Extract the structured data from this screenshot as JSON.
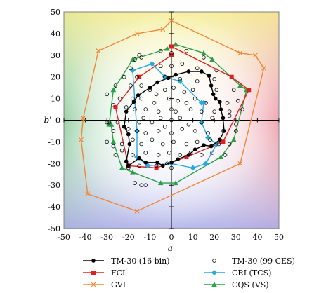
{
  "chart_data": {
    "type": "scatter",
    "title": "",
    "xlabel": "a'",
    "ylabel": "b'",
    "xlim": [
      -50,
      50
    ],
    "ylim": [
      -50,
      50
    ],
    "xticks": [
      -50,
      -40,
      -30,
      -20,
      -10,
      0,
      10,
      20,
      30,
      40,
      50
    ],
    "yticks": [
      -50,
      -40,
      -30,
      -20,
      -10,
      0,
      10,
      20,
      30,
      40,
      50
    ],
    "background": "hue-gradient",
    "grid": false,
    "legend_position": "bottom",
    "series": [
      {
        "name": "TM-30 (16 bin)",
        "kind": "polygon",
        "marker": "circle-filled",
        "color": "#000000",
        "points": [
          [
            -1.5,
            19.5
          ],
          [
            2,
            21
          ],
          [
            8,
            22.5
          ],
          [
            14,
            22.5
          ],
          [
            17.5,
            20.5
          ],
          [
            18.5,
            16
          ],
          [
            19.5,
            12
          ],
          [
            20.5,
            10
          ],
          [
            22.5,
            8.5
          ],
          [
            23,
            5
          ],
          [
            24,
            1
          ],
          [
            24.5,
            -5
          ],
          [
            22.5,
            -9
          ],
          [
            18.5,
            -12
          ],
          [
            15,
            -11.5
          ],
          [
            11,
            -13.5
          ],
          [
            8,
            -16
          ],
          [
            3,
            -18
          ],
          [
            0,
            -19.5
          ],
          [
            -4,
            -21
          ],
          [
            -6.5,
            -19.5
          ],
          [
            -12,
            -19.5
          ],
          [
            -15,
            -17.5
          ],
          [
            -20,
            -21
          ],
          [
            -21,
            -19
          ],
          [
            -19.5,
            -11
          ],
          [
            -20,
            -6.5
          ],
          [
            -22,
            -3
          ],
          [
            -21,
            4
          ],
          [
            -17.5,
            8.5
          ],
          [
            -15.5,
            11.5
          ],
          [
            -10,
            15
          ],
          [
            -6.5,
            17.5
          ],
          [
            -1.5,
            19.5
          ]
        ]
      },
      {
        "name": "TM-30 (99 CES)",
        "kind": "scatter",
        "marker": "circle-open",
        "color": "#000000",
        "points": [
          [
            -17,
            28
          ],
          [
            -15,
            30
          ],
          [
            -14,
            29
          ],
          [
            -5,
            32
          ],
          [
            0,
            31
          ],
          [
            7,
            32
          ],
          [
            15,
            29
          ],
          [
            -19,
            24
          ],
          [
            -5,
            25
          ],
          [
            0,
            25
          ],
          [
            5,
            26
          ],
          [
            12,
            24
          ],
          [
            21,
            23
          ],
          [
            -22,
            20
          ],
          [
            -16,
            20
          ],
          [
            -3,
            20
          ],
          [
            4,
            19
          ],
          [
            12,
            18
          ],
          [
            20,
            19
          ],
          [
            -26,
            16
          ],
          [
            -19,
            16
          ],
          [
            -14,
            16
          ],
          [
            -10,
            14
          ],
          [
            -7,
            12
          ],
          [
            -3,
            14
          ],
          [
            1,
            15
          ],
          [
            6,
            13
          ],
          [
            10,
            14
          ],
          [
            21,
            14
          ],
          [
            29,
            14
          ],
          [
            -30,
            12
          ],
          [
            -24,
            10
          ],
          [
            -18,
            10
          ],
          [
            -14,
            10
          ],
          [
            -8,
            8
          ],
          [
            -1,
            10
          ],
          [
            3,
            9
          ],
          [
            7,
            8
          ],
          [
            11,
            10
          ],
          [
            16,
            8
          ],
          [
            26,
            8
          ],
          [
            31,
            9
          ],
          [
            -27,
            7
          ],
          [
            -21,
            6
          ],
          [
            -17,
            5
          ],
          [
            -12,
            5
          ],
          [
            -6,
            4
          ],
          [
            0,
            5
          ],
          [
            2,
            4
          ],
          [
            9,
            5
          ],
          [
            14,
            4
          ],
          [
            20,
            4
          ],
          [
            27,
            4
          ],
          [
            33,
            5
          ],
          [
            -29,
            -1
          ],
          [
            -30,
            -1
          ],
          [
            -25,
            -1
          ],
          [
            -15,
            -1
          ],
          [
            -13,
            1
          ],
          [
            -9,
            -1
          ],
          [
            -5,
            1
          ],
          [
            0,
            0
          ],
          [
            4,
            1
          ],
          [
            8,
            -2
          ],
          [
            14,
            -1
          ],
          [
            19,
            1
          ],
          [
            27,
            2
          ],
          [
            30,
            -2
          ],
          [
            -27,
            -5
          ],
          [
            -20,
            -4
          ],
          [
            -16,
            -5
          ],
          [
            -12,
            -6
          ],
          [
            -6,
            -5
          ],
          [
            -3,
            -3
          ],
          [
            0,
            -6
          ],
          [
            5,
            -4
          ],
          [
            11,
            -5
          ],
          [
            17,
            -6
          ],
          [
            24,
            -5
          ],
          [
            30,
            -5
          ],
          [
            -30,
            -10
          ],
          [
            -27,
            -12
          ],
          [
            -23,
            -11
          ],
          [
            -18,
            -9
          ],
          [
            -14,
            -11
          ],
          [
            -9,
            -9
          ],
          [
            -4,
            -11
          ],
          [
            1,
            -10
          ],
          [
            7,
            -11
          ],
          [
            12,
            -10
          ],
          [
            18,
            -9
          ],
          [
            22,
            -11
          ],
          [
            27,
            -11
          ],
          [
            -26,
            -16
          ],
          [
            -23,
            -14
          ],
          [
            -18,
            -16
          ],
          [
            -12,
            -15
          ],
          [
            -6,
            -16
          ],
          [
            -1,
            -15
          ],
          [
            4,
            -16
          ],
          [
            9,
            -15
          ],
          [
            14,
            -16
          ],
          [
            19,
            -15
          ],
          [
            25,
            -16
          ],
          [
            -20,
            -22
          ],
          [
            -15,
            -21
          ],
          [
            -7,
            -21
          ],
          [
            -2,
            -20
          ],
          [
            0,
            -22
          ],
          [
            -17,
            -29
          ],
          [
            -14,
            -30
          ],
          [
            -12,
            -30
          ]
        ]
      },
      {
        "name": "FCI",
        "kind": "polygon",
        "marker": "square-filled",
        "color": "#e02020",
        "points": [
          [
            -26,
            6
          ],
          [
            -15,
            20
          ],
          [
            0,
            30
          ],
          [
            0,
            34
          ],
          [
            28,
            20
          ],
          [
            36,
            14
          ],
          [
            24,
            -10
          ],
          [
            7,
            -17
          ],
          [
            -7,
            -22
          ],
          [
            -20,
            -21
          ],
          [
            -26,
            6
          ]
        ]
      },
      {
        "name": "CRI (TCS)",
        "kind": "polygon",
        "marker": "diamond-filled",
        "color": "#2aa8e0",
        "points": [
          [
            -18,
            23
          ],
          [
            -9,
            26
          ],
          [
            -3,
            20
          ],
          [
            4,
            18
          ],
          [
            14,
            8
          ],
          [
            15,
            8
          ],
          [
            14,
            -1
          ],
          [
            17,
            -8
          ],
          [
            21,
            -11
          ],
          [
            16,
            -20
          ],
          [
            10,
            -22
          ],
          [
            0,
            -20
          ],
          [
            -11,
            -21
          ],
          [
            -16,
            -17
          ],
          [
            -16,
            -5
          ],
          [
            -18,
            23
          ]
        ]
      },
      {
        "name": "GVI",
        "kind": "polygon",
        "marker": "x-cross",
        "color": "#f0883a",
        "points": [
          [
            -34,
            32
          ],
          [
            -16,
            40
          ],
          [
            -4,
            42
          ],
          [
            0,
            46
          ],
          [
            32,
            31
          ],
          [
            39,
            30
          ],
          [
            43,
            24
          ],
          [
            32,
            -20
          ],
          [
            -16,
            -42
          ],
          [
            -39,
            -34
          ],
          [
            -42,
            -9
          ],
          [
            -41,
            1
          ],
          [
            -34,
            32
          ]
        ]
      },
      {
        "name": "CQS (VS)",
        "kind": "polygon",
        "marker": "triangle-filled",
        "color": "#2aa048",
        "points": [
          [
            -28,
            -2
          ],
          [
            -29,
            -2
          ],
          [
            -27,
            14
          ],
          [
            -18,
            28
          ],
          [
            -2,
            33
          ],
          [
            2,
            35
          ],
          [
            15,
            31
          ],
          [
            19,
            28
          ],
          [
            32,
            16
          ],
          [
            35,
            14
          ],
          [
            29,
            -9
          ],
          [
            23,
            -17
          ],
          [
            2,
            -29
          ],
          [
            -5,
            -29
          ],
          [
            -18,
            -24
          ],
          [
            -23,
            -22
          ],
          [
            -27,
            -10
          ],
          [
            -28,
            -2
          ]
        ]
      }
    ]
  },
  "legend": [
    {
      "key": "tm30_16",
      "label": "TM-30 (16 bin)"
    },
    {
      "key": "tm30_99",
      "label": "TM-30 (99 CES)"
    },
    {
      "key": "fci",
      "label": "FCI"
    },
    {
      "key": "cri",
      "label": "CRI (TCS)"
    },
    {
      "key": "gvi",
      "label": "GVI"
    },
    {
      "key": "cqs",
      "label": "CQS (VS)"
    }
  ]
}
